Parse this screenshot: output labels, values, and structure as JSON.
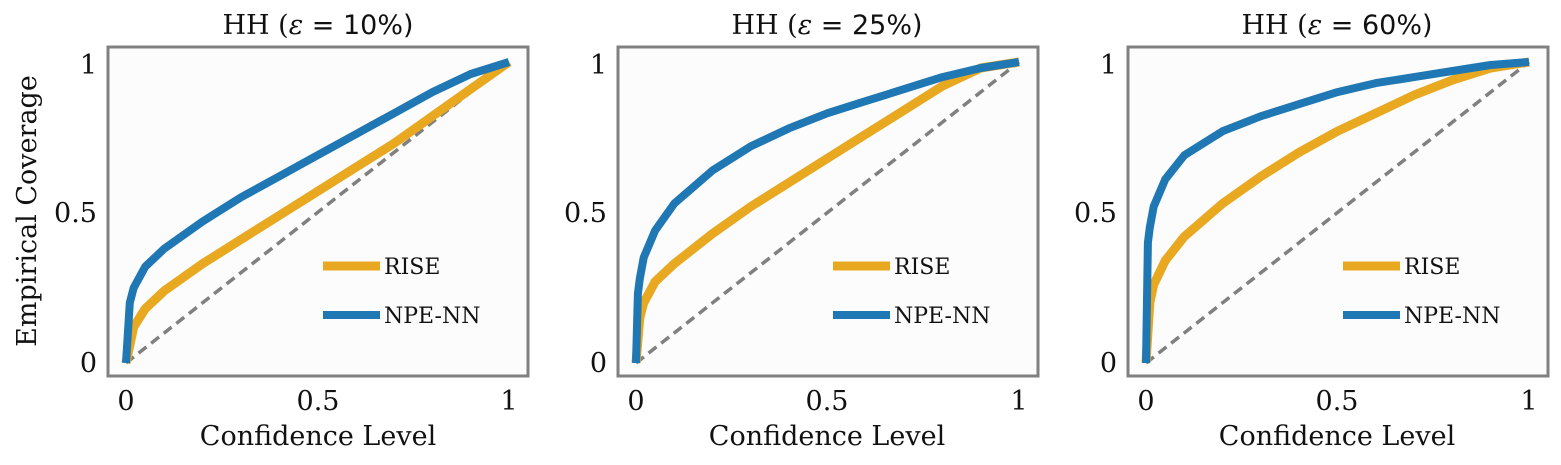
{
  "figure": {
    "ylabel": "Empirical Coverage",
    "xlabel": "Confidence Level"
  },
  "colors": {
    "rise": "#E8A820",
    "npe": "#1F77B4",
    "diagonal": "#808080",
    "frame": "#808080",
    "plot_bg": "#FCFCFC"
  },
  "chart_data": [
    {
      "type": "line",
      "title_prefix": "HH (",
      "title_symbol": "ε",
      "title_suffix": " = 10%)",
      "xlabel": "Confidence Level",
      "ylabel": "Empirical Coverage",
      "xlim": [
        0,
        1
      ],
      "ylim": [
        0,
        1
      ],
      "xticks": [
        "0",
        "0.5",
        "1"
      ],
      "yticks": [
        "0",
        "0.5",
        "1"
      ],
      "legend": [
        "RISE",
        "NPE-NN"
      ],
      "legend_position": "lower-right",
      "series": [
        {
          "name": "RISE",
          "x": [
            0,
            0.02,
            0.05,
            0.1,
            0.2,
            0.3,
            0.4,
            0.5,
            0.6,
            0.7,
            0.8,
            0.9,
            1.0
          ],
          "y": [
            0,
            0.12,
            0.18,
            0.24,
            0.33,
            0.41,
            0.49,
            0.57,
            0.65,
            0.73,
            0.82,
            0.91,
            1.0
          ]
        },
        {
          "name": "NPE-NN",
          "x": [
            0,
            0.01,
            0.02,
            0.05,
            0.1,
            0.2,
            0.3,
            0.4,
            0.5,
            0.6,
            0.7,
            0.8,
            0.9,
            1.0
          ],
          "y": [
            0,
            0.2,
            0.25,
            0.32,
            0.38,
            0.47,
            0.55,
            0.62,
            0.69,
            0.76,
            0.83,
            0.9,
            0.96,
            1.0
          ]
        },
        {
          "name": "diagonal",
          "x": [
            0,
            1
          ],
          "y": [
            0,
            1
          ]
        }
      ]
    },
    {
      "type": "line",
      "title_prefix": "HH (",
      "title_symbol": "ε",
      "title_suffix": " = 25%)",
      "xlabel": "Confidence Level",
      "ylabel": "",
      "xlim": [
        0,
        1
      ],
      "ylim": [
        0,
        1
      ],
      "xticks": [
        "0",
        "0.5",
        "1"
      ],
      "yticks": [
        "0",
        "0.5",
        "1"
      ],
      "legend": [
        "RISE",
        "NPE-NN"
      ],
      "legend_position": "lower-right",
      "series": [
        {
          "name": "RISE",
          "x": [
            0,
            0.01,
            0.02,
            0.05,
            0.1,
            0.2,
            0.3,
            0.4,
            0.5,
            0.6,
            0.7,
            0.8,
            0.9,
            1.0
          ],
          "y": [
            0,
            0.15,
            0.2,
            0.27,
            0.33,
            0.43,
            0.52,
            0.6,
            0.68,
            0.76,
            0.84,
            0.92,
            0.98,
            1.0
          ]
        },
        {
          "name": "NPE-NN",
          "x": [
            0,
            0.005,
            0.01,
            0.02,
            0.05,
            0.1,
            0.2,
            0.3,
            0.4,
            0.5,
            0.6,
            0.7,
            0.8,
            0.9,
            1.0
          ],
          "y": [
            0,
            0.23,
            0.28,
            0.35,
            0.44,
            0.53,
            0.64,
            0.72,
            0.78,
            0.83,
            0.87,
            0.91,
            0.95,
            0.98,
            1.0
          ]
        },
        {
          "name": "diagonal",
          "x": [
            0,
            1
          ],
          "y": [
            0,
            1
          ]
        }
      ]
    },
    {
      "type": "line",
      "title_prefix": "HH (",
      "title_symbol": "ε",
      "title_suffix": " = 60%)",
      "xlabel": "Confidence Level",
      "ylabel": "",
      "xlim": [
        0,
        1
      ],
      "ylim": [
        0,
        1
      ],
      "xticks": [
        "0",
        "0.5",
        "1"
      ],
      "yticks": [
        "0",
        "0.5",
        "1"
      ],
      "legend": [
        "RISE",
        "NPE-NN"
      ],
      "legend_position": "lower-right",
      "series": [
        {
          "name": "RISE",
          "x": [
            0,
            0.01,
            0.02,
            0.05,
            0.1,
            0.2,
            0.3,
            0.4,
            0.5,
            0.6,
            0.7,
            0.8,
            0.9,
            1.0
          ],
          "y": [
            0,
            0.2,
            0.26,
            0.34,
            0.42,
            0.53,
            0.62,
            0.7,
            0.77,
            0.83,
            0.89,
            0.94,
            0.98,
            1.0
          ]
        },
        {
          "name": "NPE-NN",
          "x": [
            0,
            0.005,
            0.01,
            0.02,
            0.05,
            0.1,
            0.2,
            0.3,
            0.4,
            0.5,
            0.6,
            0.7,
            0.8,
            0.9,
            1.0
          ],
          "y": [
            0,
            0.4,
            0.45,
            0.52,
            0.61,
            0.69,
            0.77,
            0.82,
            0.86,
            0.9,
            0.93,
            0.95,
            0.97,
            0.99,
            1.0
          ]
        },
        {
          "name": "diagonal",
          "x": [
            0,
            1
          ],
          "y": [
            0,
            1
          ]
        }
      ]
    }
  ]
}
